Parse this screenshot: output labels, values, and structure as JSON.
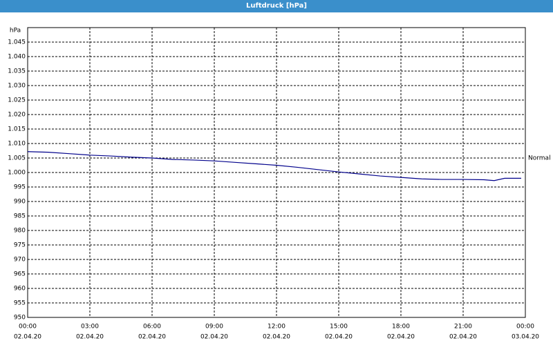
{
  "chart_data": {
    "type": "line",
    "title": "Luftdruck [hPa]",
    "y_unit": "hPa",
    "x": [
      0,
      1,
      2,
      3,
      4,
      5,
      6,
      7,
      8,
      9,
      10,
      11,
      12,
      13,
      14,
      15,
      16,
      17,
      18,
      19,
      20,
      21,
      22,
      22.5,
      23,
      23.8
    ],
    "series": [
      {
        "name": "Luftdruck",
        "color": "#00008b",
        "values": [
          1007.2,
          1007,
          1006.5,
          1006,
          1005.7,
          1005.3,
          1005,
          1004.5,
          1004.3,
          1004,
          1003.5,
          1003,
          1002.5,
          1001.8,
          1001,
          1000.2,
          999.5,
          998.8,
          998.3,
          997.8,
          997.6,
          997.6,
          997.5,
          997.2,
          998,
          998
        ]
      }
    ],
    "xlim": [
      0,
      24
    ],
    "xticks": [
      {
        "value": 0,
        "label": "00:00"
      },
      {
        "value": 3,
        "label": "03:00"
      },
      {
        "value": 6,
        "label": "06:00"
      },
      {
        "value": 9,
        "label": "09:00"
      },
      {
        "value": 12,
        "label": "12:00"
      },
      {
        "value": 15,
        "label": "15:00"
      },
      {
        "value": 18,
        "label": "18:00"
      },
      {
        "value": 21,
        "label": "21:00"
      },
      {
        "value": 24,
        "label": "00:00"
      }
    ],
    "xtick_dates": [
      "02.04.20",
      "02.04.20",
      "02.04.20",
      "02.04.20",
      "02.04.20",
      "02.04.20",
      "02.04.20",
      "02.04.20",
      "03.04.20"
    ],
    "ylim": [
      950,
      1050
    ],
    "yticks": [
      950,
      955,
      960,
      965,
      970,
      975,
      980,
      985,
      990,
      995,
      {
        "value": 1000,
        "label": "1.000"
      },
      {
        "value": 1005,
        "label": "1.005"
      },
      {
        "value": 1010,
        "label": "1.010"
      },
      {
        "value": 1015,
        "label": "1.015"
      },
      {
        "value": 1020,
        "label": "1.020"
      },
      {
        "value": 1025,
        "label": "1.025"
      },
      {
        "value": 1030,
        "label": "1.030"
      },
      {
        "value": 1035,
        "label": "1.035"
      },
      {
        "value": 1040,
        "label": "1.040"
      },
      {
        "value": 1045,
        "label": "1.045"
      }
    ],
    "grid": true,
    "reference": {
      "label": "Normal",
      "value": 1005
    }
  }
}
